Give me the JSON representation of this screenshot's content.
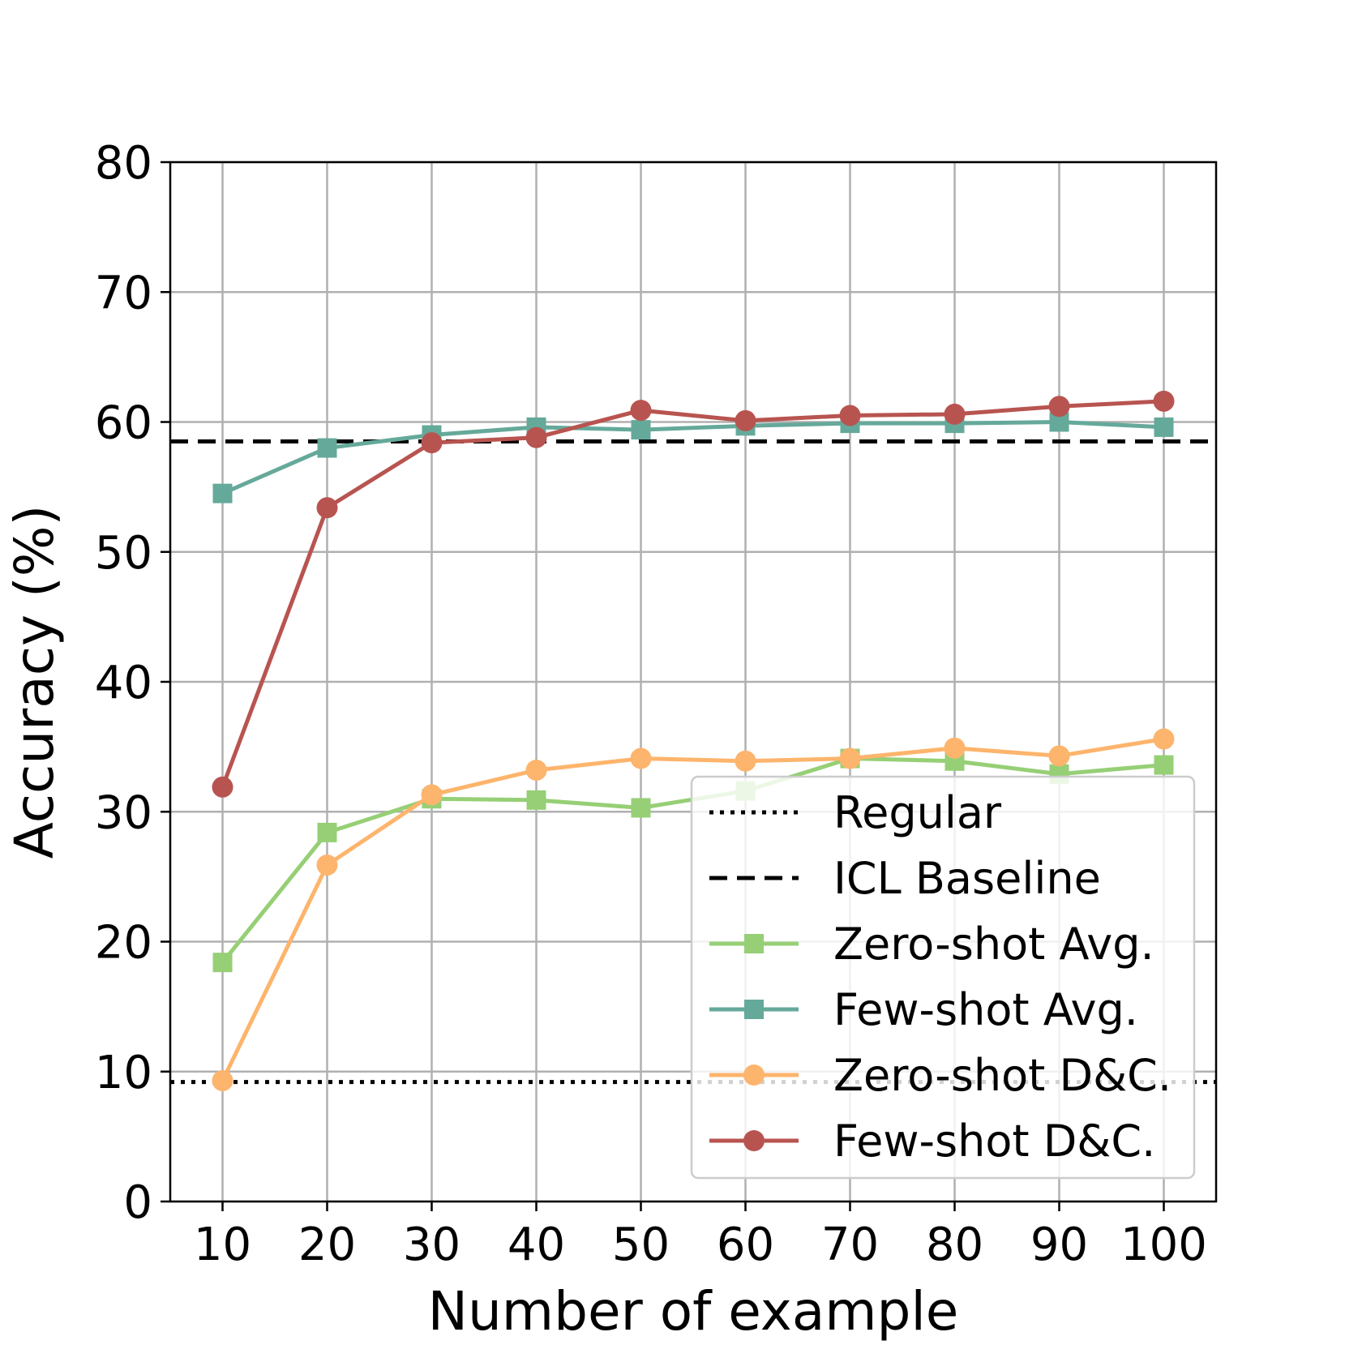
{
  "chart_data": {
    "type": "line",
    "xlabel": "Number of example",
    "ylabel": "Accuracy (%)",
    "x": [
      10,
      20,
      30,
      40,
      50,
      60,
      70,
      80,
      90,
      100
    ],
    "xticks": [
      "10",
      "20",
      "30",
      "40",
      "50",
      "60",
      "70",
      "80",
      "90",
      "100"
    ],
    "yticks": [
      "0",
      "10",
      "20",
      "30",
      "40",
      "50",
      "60",
      "70",
      "80"
    ],
    "xlim": [
      5,
      105
    ],
    "ylim": [
      0,
      80
    ],
    "grid": true,
    "legend_position": "lower-right",
    "reference_lines": [
      {
        "name": "Regular",
        "y": 9.2,
        "style": "dotted",
        "color": "#000000"
      },
      {
        "name": "ICL Baseline",
        "y": 58.5,
        "style": "dashed",
        "color": "#000000"
      }
    ],
    "series": [
      {
        "name": "Zero-shot Avg.",
        "marker": "square",
        "color": "#96cf75",
        "values": [
          18.4,
          28.4,
          31.0,
          30.9,
          30.3,
          31.6,
          34.1,
          33.9,
          32.9,
          33.6
        ]
      },
      {
        "name": "Few-shot Avg.",
        "marker": "square",
        "color": "#65a99a",
        "values": [
          54.5,
          58.0,
          59.0,
          59.6,
          59.4,
          59.7,
          59.9,
          59.9,
          60.0,
          59.6
        ]
      },
      {
        "name": "Zero-shot D&C.",
        "marker": "circle",
        "color": "#fdb46c",
        "values": [
          9.3,
          25.9,
          31.3,
          33.2,
          34.1,
          33.9,
          34.1,
          34.9,
          34.3,
          35.6
        ]
      },
      {
        "name": "Few-shot D&C.",
        "marker": "circle",
        "color": "#b85450",
        "values": [
          31.9,
          53.4,
          58.4,
          58.8,
          60.9,
          60.1,
          60.5,
          60.6,
          61.2,
          61.6
        ]
      }
    ]
  }
}
